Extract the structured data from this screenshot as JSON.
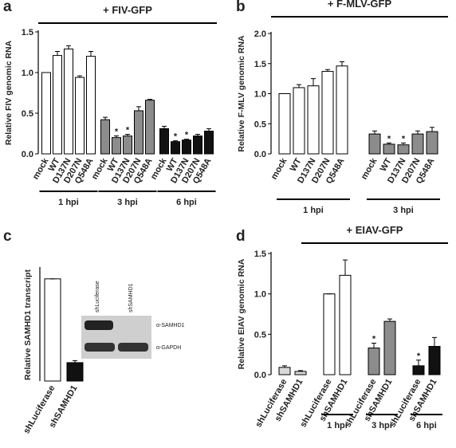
{
  "chart_data": [
    {
      "panel": "a",
      "type": "bar",
      "title": "+ FIV-GFP",
      "y_label": "Relative FIV genomic RNA",
      "ylim": [
        0,
        1.5
      ],
      "yticks": [
        {
          "value": 0,
          "label": "0.0"
        },
        {
          "value": 0.5,
          "label": "0.5"
        },
        {
          "value": 1,
          "label": "1.0"
        },
        {
          "value": 1.5,
          "label": "1.5"
        }
      ],
      "groups": [
        {
          "name": "1 hpi",
          "color": "#ffffff",
          "categories": [
            "mock",
            "WT",
            "D137N",
            "D207N",
            "Q548A"
          ],
          "values": [
            1.0,
            1.21,
            1.29,
            0.94,
            1.2
          ],
          "errors": [
            0,
            0.05,
            0.04,
            0.02,
            0.06
          ],
          "significance": [
            null,
            null,
            null,
            null,
            null
          ]
        },
        {
          "name": "3 hpi",
          "color": "#8c8c8c",
          "categories": [
            "mock",
            "WT",
            "D137N",
            "D207N",
            "Q548A"
          ],
          "values": [
            0.42,
            0.2,
            0.22,
            0.53,
            0.66
          ],
          "errors": [
            0.03,
            0.02,
            0.02,
            0.05,
            0.01
          ],
          "significance": [
            null,
            "*",
            "*",
            null,
            null
          ]
        },
        {
          "name": "6 hpi",
          "color": "#111111",
          "categories": [
            "mock",
            "WT",
            "D137N",
            "D207N",
            "Q548A"
          ],
          "values": [
            0.31,
            0.15,
            0.17,
            0.22,
            0.28
          ],
          "errors": [
            0.03,
            0.01,
            0.01,
            0.02,
            0.03
          ],
          "significance": [
            null,
            "*",
            "*",
            null,
            null
          ]
        }
      ]
    },
    {
      "panel": "b",
      "type": "bar",
      "title": "+ F-MLV-GFP",
      "y_label": "Relative F-MLV genomic RNA",
      "ylim": [
        0,
        2.0
      ],
      "yticks": [
        {
          "value": 0,
          "label": "0.0"
        },
        {
          "value": 0.5,
          "label": "0.5"
        },
        {
          "value": 1,
          "label": "1.0"
        },
        {
          "value": 1.5,
          "label": "1.5"
        },
        {
          "value": 2,
          "label": "2.0"
        }
      ],
      "groups": [
        {
          "name": "1 hpi",
          "color": "#ffffff",
          "categories": [
            "mock",
            "WT",
            "D137N",
            "D207N",
            "Q548A"
          ],
          "values": [
            1.0,
            1.1,
            1.13,
            1.37,
            1.46
          ],
          "errors": [
            0,
            0.05,
            0.12,
            0.03,
            0.07
          ],
          "significance": [
            null,
            null,
            null,
            null,
            null
          ]
        },
        {
          "name": "3 hpi",
          "color": "#8c8c8c",
          "categories": [
            "mock",
            "WT",
            "D137N",
            "D207N",
            "Q548A"
          ],
          "values": [
            0.33,
            0.16,
            0.15,
            0.33,
            0.37
          ],
          "errors": [
            0.05,
            0.02,
            0.03,
            0.05,
            0.07
          ],
          "significance": [
            null,
            "*",
            "*",
            null,
            null
          ]
        }
      ]
    },
    {
      "panel": "c",
      "type": "bar",
      "y_label": "Relative SAMHD1 transcript",
      "ylim": [
        0,
        1.1
      ],
      "groups": [
        {
          "name": null,
          "color": "#ffffff",
          "categories": [
            "shLuciferase"
          ],
          "values": [
            1.0
          ],
          "errors": [
            0
          ],
          "significance": [
            null
          ]
        },
        {
          "name": null,
          "color": "#111111",
          "categories": [
            "shSAMHD1"
          ],
          "values": [
            0.18
          ],
          "errors": [
            0.02
          ],
          "significance": [
            null
          ]
        }
      ],
      "inset": {
        "lanes": [
          "shLuciferase",
          "shSAMHD1"
        ],
        "rows": [
          "α-SAMHD1",
          "α-GAPDH"
        ]
      }
    },
    {
      "panel": "d",
      "type": "bar",
      "title": "+ EIAV-GFP",
      "y_label": "Relative EIAV genomic RNA",
      "ylim": [
        0,
        1.5
      ],
      "yticks": [
        {
          "value": 0,
          "label": "0.0"
        },
        {
          "value": 0.5,
          "label": "0.5"
        },
        {
          "value": 1,
          "label": "1.0"
        },
        {
          "value": 1.5,
          "label": "1.5"
        }
      ],
      "groups": [
        {
          "name": null,
          "color": "#d9d9d9",
          "categories": [
            "shLuciferase",
            "shSAMHD1"
          ],
          "values": [
            0.09,
            0.04
          ],
          "errors": [
            0.02,
            0.01
          ],
          "significance": [
            null,
            null
          ]
        },
        {
          "name": "1 hpi",
          "color": "#ffffff",
          "categories": [
            "shLuciferase",
            "shSAMHD1"
          ],
          "values": [
            1.0,
            1.23
          ],
          "errors": [
            0,
            0.19
          ],
          "significance": [
            null,
            null
          ]
        },
        {
          "name": "3 hpi",
          "color": "#8c8c8c",
          "categories": [
            "shLuciferase",
            "shSAMHD1"
          ],
          "values": [
            0.33,
            0.66
          ],
          "errors": [
            0.06,
            0.03
          ],
          "significance": [
            "*",
            null
          ]
        },
        {
          "name": "6 hpi",
          "color": "#111111",
          "categories": [
            "shLuciferase",
            "shSAMHD1"
          ],
          "values": [
            0.11,
            0.35
          ],
          "errors": [
            0.07,
            0.11
          ],
          "significance": [
            "*",
            null
          ]
        }
      ]
    }
  ]
}
